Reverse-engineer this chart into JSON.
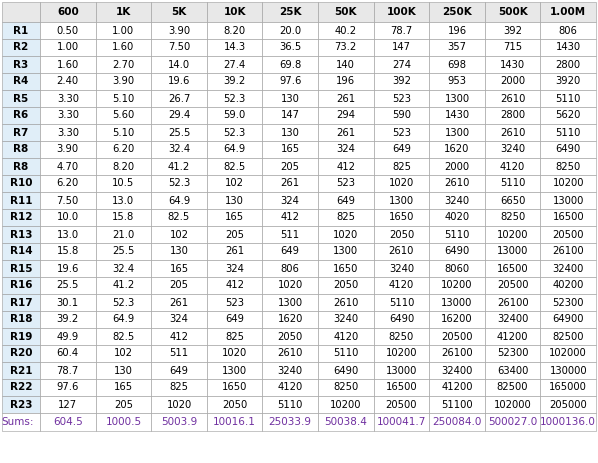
{
  "columns": [
    "600",
    "1K",
    "5K",
    "10K",
    "25K",
    "50K",
    "100K",
    "250K",
    "500K",
    "1.00M"
  ],
  "row_labels": [
    "R1",
    "R2",
    "R3",
    "R4",
    "R5",
    "R6",
    "R7",
    "R8",
    "R8",
    "R10",
    "R11",
    "R12",
    "R13",
    "R14",
    "R15",
    "R16",
    "R17",
    "R18",
    "R19",
    "R20",
    "R21",
    "R22",
    "R23"
  ],
  "table_data": [
    [
      "0.50",
      "1.00",
      "3.90",
      "8.20",
      "20.0",
      "40.2",
      "78.7",
      "196",
      "392",
      "806"
    ],
    [
      "1.00",
      "1.60",
      "7.50",
      "14.3",
      "36.5",
      "73.2",
      "147",
      "357",
      "715",
      "1430"
    ],
    [
      "1.60",
      "2.70",
      "14.0",
      "27.4",
      "69.8",
      "140",
      "274",
      "698",
      "1430",
      "2800"
    ],
    [
      "2.40",
      "3.90",
      "19.6",
      "39.2",
      "97.6",
      "196",
      "392",
      "953",
      "2000",
      "3920"
    ],
    [
      "3.30",
      "5.10",
      "26.7",
      "52.3",
      "130",
      "261",
      "523",
      "1300",
      "2610",
      "5110"
    ],
    [
      "3.30",
      "5.60",
      "29.4",
      "59.0",
      "147",
      "294",
      "590",
      "1430",
      "2800",
      "5620"
    ],
    [
      "3.30",
      "5.10",
      "25.5",
      "52.3",
      "130",
      "261",
      "523",
      "1300",
      "2610",
      "5110"
    ],
    [
      "3.90",
      "6.20",
      "32.4",
      "64.9",
      "165",
      "324",
      "649",
      "1620",
      "3240",
      "6490"
    ],
    [
      "4.70",
      "8.20",
      "41.2",
      "82.5",
      "205",
      "412",
      "825",
      "2000",
      "4120",
      "8250"
    ],
    [
      "6.20",
      "10.5",
      "52.3",
      "102",
      "261",
      "523",
      "1020",
      "2610",
      "5110",
      "10200"
    ],
    [
      "7.50",
      "13.0",
      "64.9",
      "130",
      "324",
      "649",
      "1300",
      "3240",
      "6650",
      "13000"
    ],
    [
      "10.0",
      "15.8",
      "82.5",
      "165",
      "412",
      "825",
      "1650",
      "4020",
      "8250",
      "16500"
    ],
    [
      "13.0",
      "21.0",
      "102",
      "205",
      "511",
      "1020",
      "2050",
      "5110",
      "10200",
      "20500"
    ],
    [
      "15.8",
      "25.5",
      "130",
      "261",
      "649",
      "1300",
      "2610",
      "6490",
      "13000",
      "26100"
    ],
    [
      "19.6",
      "32.4",
      "165",
      "324",
      "806",
      "1650",
      "3240",
      "8060",
      "16500",
      "32400"
    ],
    [
      "25.5",
      "41.2",
      "205",
      "412",
      "1020",
      "2050",
      "4120",
      "10200",
      "20500",
      "40200"
    ],
    [
      "30.1",
      "52.3",
      "261",
      "523",
      "1300",
      "2610",
      "5110",
      "13000",
      "26100",
      "52300"
    ],
    [
      "39.2",
      "64.9",
      "324",
      "649",
      "1620",
      "3240",
      "6490",
      "16200",
      "32400",
      "64900"
    ],
    [
      "49.9",
      "82.5",
      "412",
      "825",
      "2050",
      "4120",
      "8250",
      "20500",
      "41200",
      "82500"
    ],
    [
      "60.4",
      "102",
      "511",
      "1020",
      "2610",
      "5110",
      "10200",
      "26100",
      "52300",
      "102000"
    ],
    [
      "78.7",
      "130",
      "649",
      "1300",
      "3240",
      "6490",
      "13000",
      "32400",
      "63400",
      "130000"
    ],
    [
      "97.6",
      "165",
      "825",
      "1650",
      "4120",
      "8250",
      "16500",
      "41200",
      "82500",
      "165000"
    ],
    [
      "127",
      "205",
      "1020",
      "2050",
      "5110",
      "10200",
      "20500",
      "51100",
      "102000",
      "205000"
    ]
  ],
  "sums": [
    "604.5",
    "1000.5",
    "5003.9",
    "10016.1",
    "25033.9",
    "50038.4",
    "100041.7",
    "250084.0",
    "500027.0",
    "1000136.0"
  ],
  "header_bg": "#e8e8e8",
  "row_label_bg": "#e0eef8",
  "data_bg": "#ffffff",
  "sums_label": "Sums:",
  "sums_color": "#7030a0",
  "header_text_color": "#000000",
  "data_text_color": "#000000",
  "border_color": "#999999",
  "header_font_size": 7.5,
  "data_font_size": 7.2,
  "sums_font_size": 7.5,
  "row_label_font_size": 7.5
}
